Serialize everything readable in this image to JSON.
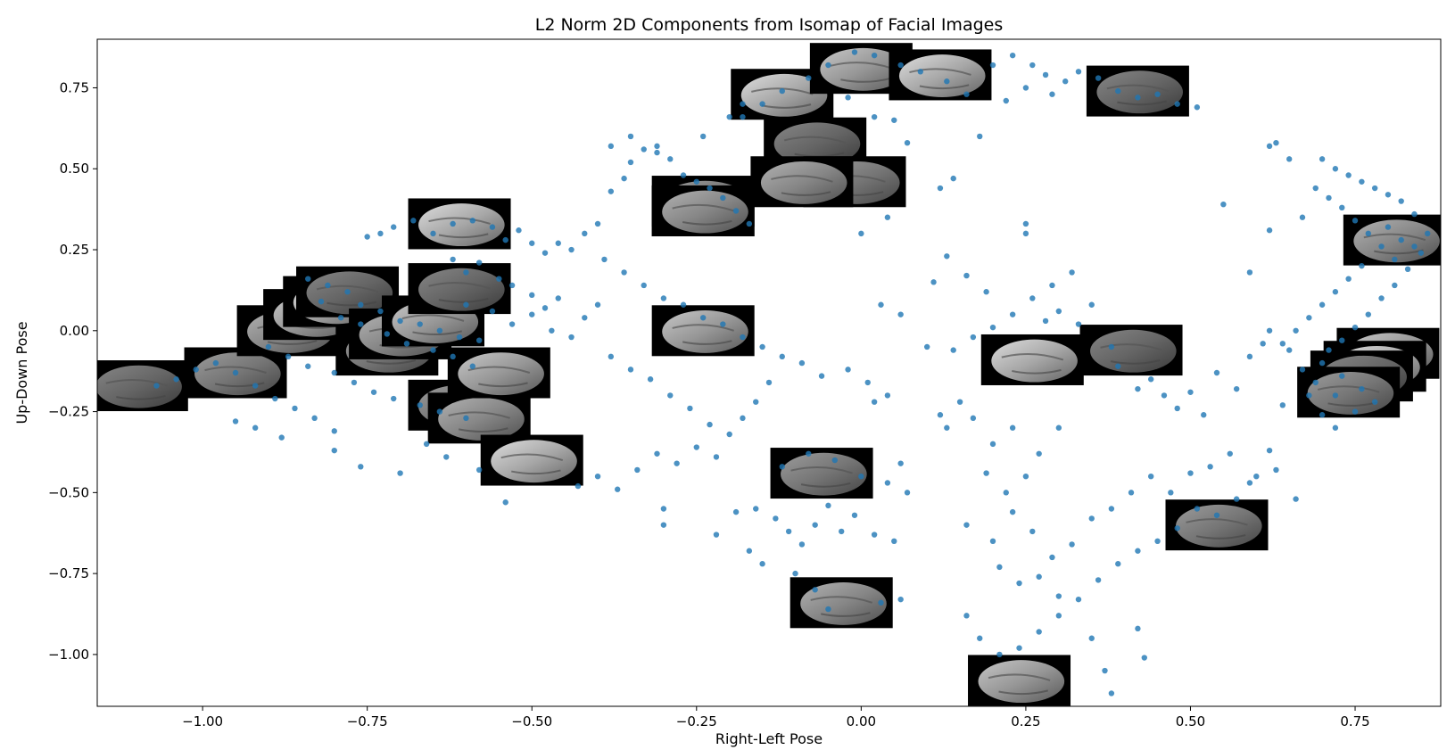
{
  "chart_data": {
    "type": "scatter",
    "title": "L2 Norm 2D Components from Isomap of Facial Images",
    "xlabel": "Right-Left Pose",
    "ylabel": "Up-Down Pose",
    "xlim": [
      -1.16,
      0.88
    ],
    "ylim": [
      -1.16,
      0.9
    ],
    "xticks": [
      -1.0,
      -0.75,
      -0.5,
      -0.25,
      0.0,
      0.25,
      0.5,
      0.75
    ],
    "xtick_labels": [
      "−1.00",
      "−0.75",
      "−0.50",
      "−0.25",
      "0.00",
      "0.25",
      "0.50",
      "0.75"
    ],
    "yticks": [
      0.75,
      0.5,
      0.25,
      0.0,
      -0.25,
      -0.5,
      -0.75,
      -1.0
    ],
    "ytick_labels": [
      "0.75",
      "0.50",
      "0.25",
      "0.00",
      "−0.25",
      "−0.50",
      "−0.75",
      "−1.00"
    ],
    "grid": false,
    "marker_color": "#1f77b4",
    "thumbnail_icon": "face-thumbnail-icon",
    "points": [
      [
        -0.84,
        0.16
      ],
      [
        -0.81,
        0.14
      ],
      [
        -0.78,
        0.12
      ],
      [
        -0.76,
        0.08
      ],
      [
        -0.73,
        0.06
      ],
      [
        -0.7,
        0.03
      ],
      [
        -0.67,
        0.02
      ],
      [
        -0.64,
        0.0
      ],
      [
        -0.61,
        -0.02
      ],
      [
        -0.58,
        -0.03
      ],
      [
        -0.82,
        0.09
      ],
      [
        -0.79,
        0.04
      ],
      [
        -0.76,
        0.02
      ],
      [
        -0.72,
        -0.01
      ],
      [
        -0.69,
        -0.04
      ],
      [
        -0.65,
        -0.06
      ],
      [
        -0.62,
        -0.08
      ],
      [
        -0.59,
        -0.11
      ],
      [
        -0.9,
        -0.05
      ],
      [
        -0.87,
        -0.08
      ],
      [
        -0.84,
        -0.11
      ],
      [
        -0.8,
        -0.13
      ],
      [
        -0.77,
        -0.16
      ],
      [
        -0.74,
        -0.19
      ],
      [
        -0.71,
        -0.21
      ],
      [
        -0.67,
        -0.23
      ],
      [
        -0.64,
        -0.25
      ],
      [
        -0.6,
        -0.27
      ],
      [
        -1.07,
        -0.17
      ],
      [
        -1.04,
        -0.15
      ],
      [
        -1.01,
        -0.12
      ],
      [
        -0.98,
        -0.1
      ],
      [
        -0.95,
        -0.13
      ],
      [
        -0.92,
        -0.17
      ],
      [
        -0.89,
        -0.21
      ],
      [
        -0.86,
        -0.24
      ],
      [
        -0.83,
        -0.27
      ],
      [
        -0.8,
        -0.31
      ],
      [
        -0.95,
        -0.28
      ],
      [
        -0.92,
        -0.3
      ],
      [
        -0.88,
        -0.33
      ],
      [
        -0.8,
        -0.37
      ],
      [
        -0.76,
        -0.42
      ],
      [
        -0.7,
        -0.44
      ],
      [
        -0.66,
        -0.35
      ],
      [
        -0.63,
        -0.39
      ],
      [
        -0.58,
        -0.43
      ],
      [
        -0.54,
        -0.53
      ],
      [
        -0.75,
        0.29
      ],
      [
        -0.73,
        0.3
      ],
      [
        -0.71,
        0.32
      ],
      [
        -0.68,
        0.34
      ],
      [
        -0.65,
        0.3
      ],
      [
        -0.62,
        0.33
      ],
      [
        -0.59,
        0.34
      ],
      [
        -0.56,
        0.32
      ],
      [
        -0.54,
        0.28
      ],
      [
        -0.52,
        0.31
      ],
      [
        -0.5,
        0.27
      ],
      [
        -0.48,
        0.24
      ],
      [
        -0.46,
        0.27
      ],
      [
        -0.44,
        0.25
      ],
      [
        -0.42,
        0.3
      ],
      [
        -0.4,
        0.33
      ],
      [
        -0.62,
        0.22
      ],
      [
        -0.6,
        0.18
      ],
      [
        -0.58,
        0.21
      ],
      [
        -0.55,
        0.16
      ],
      [
        -0.53,
        0.14
      ],
      [
        -0.5,
        0.11
      ],
      [
        -0.48,
        0.07
      ],
      [
        -0.46,
        0.1
      ],
      [
        -0.6,
        0.08
      ],
      [
        -0.56,
        0.06
      ],
      [
        -0.53,
        0.02
      ],
      [
        -0.5,
        0.05
      ],
      [
        -0.47,
        0.0
      ],
      [
        -0.44,
        -0.02
      ],
      [
        -0.42,
        0.04
      ],
      [
        -0.4,
        0.08
      ],
      [
        -0.38,
        0.43
      ],
      [
        -0.36,
        0.47
      ],
      [
        -0.35,
        0.52
      ],
      [
        -0.33,
        0.56
      ],
      [
        -0.31,
        0.57
      ],
      [
        -0.29,
        0.53
      ],
      [
        -0.27,
        0.48
      ],
      [
        -0.25,
        0.46
      ],
      [
        -0.23,
        0.44
      ],
      [
        -0.21,
        0.41
      ],
      [
        -0.19,
        0.37
      ],
      [
        -0.17,
        0.33
      ],
      [
        -0.38,
        0.57
      ],
      [
        -0.35,
        0.6
      ],
      [
        -0.31,
        0.55
      ],
      [
        -0.24,
        0.6
      ],
      [
        -0.2,
        0.66
      ],
      [
        -0.18,
        0.7
      ],
      [
        -0.39,
        0.22
      ],
      [
        -0.36,
        0.18
      ],
      [
        -0.33,
        0.14
      ],
      [
        -0.3,
        0.1
      ],
      [
        -0.27,
        0.08
      ],
      [
        -0.24,
        0.04
      ],
      [
        -0.21,
        0.02
      ],
      [
        -0.18,
        -0.02
      ],
      [
        -0.15,
        -0.05
      ],
      [
        -0.12,
        -0.08
      ],
      [
        -0.09,
        -0.1
      ],
      [
        -0.06,
        -0.14
      ],
      [
        -0.38,
        -0.08
      ],
      [
        -0.35,
        -0.12
      ],
      [
        -0.32,
        -0.15
      ],
      [
        -0.29,
        -0.2
      ],
      [
        -0.26,
        -0.24
      ],
      [
        -0.23,
        -0.29
      ],
      [
        -0.2,
        -0.32
      ],
      [
        -0.18,
        -0.27
      ],
      [
        -0.16,
        -0.22
      ],
      [
        -0.14,
        -0.16
      ],
      [
        -0.43,
        -0.48
      ],
      [
        -0.4,
        -0.45
      ],
      [
        -0.37,
        -0.49
      ],
      [
        -0.34,
        -0.43
      ],
      [
        -0.31,
        -0.38
      ],
      [
        -0.28,
        -0.41
      ],
      [
        -0.25,
        -0.36
      ],
      [
        -0.22,
        -0.39
      ],
      [
        -0.3,
        -0.55
      ],
      [
        -0.3,
        -0.6
      ],
      [
        -0.22,
        -0.63
      ],
      [
        -0.19,
        -0.56
      ],
      [
        -0.17,
        -0.68
      ],
      [
        -0.15,
        -0.72
      ],
      [
        -0.13,
        -0.58
      ],
      [
        -0.11,
        -0.62
      ],
      [
        -0.09,
        -0.66
      ],
      [
        -0.07,
        -0.6
      ],
      [
        -0.05,
        -0.54
      ],
      [
        -0.03,
        -0.62
      ],
      [
        -0.01,
        -0.57
      ],
      [
        0.02,
        -0.63
      ],
      [
        0.05,
        -0.65
      ],
      [
        -0.16,
        -0.55
      ],
      [
        -0.12,
        -0.42
      ],
      [
        -0.08,
        -0.38
      ],
      [
        -0.04,
        -0.4
      ],
      [
        0.0,
        -0.45
      ],
      [
        0.04,
        -0.47
      ],
      [
        0.07,
        -0.5
      ],
      [
        0.06,
        -0.41
      ],
      [
        -0.1,
        -0.75
      ],
      [
        -0.07,
        -0.8
      ],
      [
        -0.05,
        -0.86
      ],
      [
        0.03,
        -0.84
      ],
      [
        0.06,
        -0.83
      ],
      [
        -0.02,
        -0.12
      ],
      [
        0.01,
        -0.16
      ],
      [
        0.04,
        -0.2
      ],
      [
        0.02,
        -0.22
      ],
      [
        0.03,
        0.08
      ],
      [
        0.06,
        0.05
      ],
      [
        0.0,
        0.3
      ],
      [
        0.04,
        0.35
      ],
      [
        0.12,
        0.44
      ],
      [
        0.1,
        -0.05
      ],
      [
        0.12,
        -0.26
      ],
      [
        0.13,
        -0.3
      ],
      [
        0.15,
        -0.22
      ],
      [
        0.17,
        -0.27
      ],
      [
        0.2,
        -0.35
      ],
      [
        0.23,
        -0.3
      ],
      [
        0.27,
        -0.38
      ],
      [
        0.3,
        -0.3
      ],
      [
        0.14,
        -0.06
      ],
      [
        0.17,
        -0.02
      ],
      [
        0.2,
        0.01
      ],
      [
        0.23,
        0.05
      ],
      [
        0.26,
        0.1
      ],
      [
        0.29,
        0.14
      ],
      [
        0.32,
        0.18
      ],
      [
        0.25,
        0.33
      ],
      [
        0.25,
        0.3
      ],
      [
        0.13,
        0.23
      ],
      [
        0.11,
        0.15
      ],
      [
        0.16,
        0.17
      ],
      [
        0.19,
        0.12
      ],
      [
        0.28,
        0.03
      ],
      [
        0.3,
        0.06
      ],
      [
        0.33,
        0.02
      ],
      [
        0.35,
        0.08
      ],
      [
        0.38,
        -0.05
      ],
      [
        0.39,
        -0.11
      ],
      [
        0.42,
        -0.18
      ],
      [
        0.44,
        -0.15
      ],
      [
        0.46,
        -0.2
      ],
      [
        0.48,
        -0.24
      ],
      [
        0.5,
        -0.19
      ],
      [
        0.52,
        -0.26
      ],
      [
        0.54,
        -0.13
      ],
      [
        0.57,
        -0.18
      ],
      [
        0.59,
        -0.08
      ],
      [
        0.61,
        -0.04
      ],
      [
        0.62,
        0.0
      ],
      [
        0.65,
        -0.06
      ],
      [
        0.67,
        -0.12
      ],
      [
        0.68,
        -0.2
      ],
      [
        0.7,
        -0.26
      ],
      [
        0.72,
        -0.3
      ],
      [
        0.64,
        -0.23
      ],
      [
        0.62,
        -0.37
      ],
      [
        0.6,
        -0.45
      ],
      [
        0.57,
        -0.52
      ],
      [
        0.54,
        -0.57
      ],
      [
        0.51,
        -0.55
      ],
      [
        0.48,
        -0.61
      ],
      [
        0.45,
        -0.65
      ],
      [
        0.42,
        -0.68
      ],
      [
        0.39,
        -0.72
      ],
      [
        0.36,
        -0.77
      ],
      [
        0.33,
        -0.83
      ],
      [
        0.3,
        -0.88
      ],
      [
        0.27,
        -0.93
      ],
      [
        0.24,
        -0.98
      ],
      [
        0.21,
        -1.0
      ],
      [
        0.18,
        -0.95
      ],
      [
        0.16,
        -0.88
      ],
      [
        0.35,
        -0.95
      ],
      [
        0.37,
        -1.05
      ],
      [
        0.38,
        -1.12
      ],
      [
        0.42,
        -0.92
      ],
      [
        0.43,
        -1.01
      ],
      [
        0.16,
        -0.6
      ],
      [
        0.2,
        -0.65
      ],
      [
        0.23,
        -0.56
      ],
      [
        0.26,
        -0.62
      ],
      [
        0.29,
        -0.7
      ],
      [
        0.32,
        -0.66
      ],
      [
        0.35,
        -0.58
      ],
      [
        0.38,
        -0.55
      ],
      [
        0.41,
        -0.5
      ],
      [
        0.44,
        -0.45
      ],
      [
        0.47,
        -0.5
      ],
      [
        0.5,
        -0.44
      ],
      [
        0.53,
        -0.42
      ],
      [
        0.56,
        -0.38
      ],
      [
        0.59,
        -0.47
      ],
      [
        0.63,
        -0.43
      ],
      [
        0.66,
        -0.52
      ],
      [
        0.22,
        -0.5
      ],
      [
        0.25,
        -0.45
      ],
      [
        0.19,
        -0.44
      ],
      [
        0.21,
        -0.73
      ],
      [
        0.24,
        -0.78
      ],
      [
        0.27,
        -0.76
      ],
      [
        0.3,
        -0.82
      ],
      [
        0.14,
        0.47
      ],
      [
        0.18,
        0.6
      ],
      [
        0.2,
        0.82
      ],
      [
        0.23,
        0.85
      ],
      [
        0.26,
        0.82
      ],
      [
        0.28,
        0.79
      ],
      [
        0.31,
        0.77
      ],
      [
        0.33,
        0.8
      ],
      [
        0.36,
        0.78
      ],
      [
        0.39,
        0.74
      ],
      [
        0.42,
        0.72
      ],
      [
        0.45,
        0.73
      ],
      [
        0.48,
        0.7
      ],
      [
        0.51,
        0.69
      ],
      [
        0.29,
        0.73
      ],
      [
        0.25,
        0.75
      ],
      [
        0.22,
        0.71
      ],
      [
        0.16,
        0.73
      ],
      [
        0.13,
        0.77
      ],
      [
        0.09,
        0.8
      ],
      [
        0.06,
        0.82
      ],
      [
        0.02,
        0.85
      ],
      [
        -0.01,
        0.86
      ],
      [
        -0.05,
        0.82
      ],
      [
        -0.08,
        0.78
      ],
      [
        -0.12,
        0.74
      ],
      [
        -0.15,
        0.7
      ],
      [
        -0.18,
        0.66
      ],
      [
        -0.02,
        0.72
      ],
      [
        0.02,
        0.66
      ],
      [
        0.05,
        0.65
      ],
      [
        0.07,
        0.58
      ],
      [
        0.63,
        0.58
      ],
      [
        0.62,
        0.57
      ],
      [
        0.65,
        0.53
      ],
      [
        0.67,
        0.35
      ],
      [
        0.62,
        0.31
      ],
      [
        0.59,
        0.18
      ],
      [
        0.55,
        0.39
      ],
      [
        0.7,
        0.53
      ],
      [
        0.72,
        0.5
      ],
      [
        0.74,
        0.48
      ],
      [
        0.76,
        0.46
      ],
      [
        0.78,
        0.44
      ],
      [
        0.8,
        0.42
      ],
      [
        0.82,
        0.4
      ],
      [
        0.84,
        0.36
      ],
      [
        0.86,
        0.3
      ],
      [
        0.85,
        0.24
      ],
      [
        0.83,
        0.19
      ],
      [
        0.81,
        0.14
      ],
      [
        0.79,
        0.1
      ],
      [
        0.77,
        0.05
      ],
      [
        0.75,
        0.01
      ],
      [
        0.73,
        -0.03
      ],
      [
        0.71,
        -0.06
      ],
      [
        0.69,
        0.44
      ],
      [
        0.71,
        0.41
      ],
      [
        0.73,
        0.38
      ],
      [
        0.75,
        0.34
      ],
      [
        0.77,
        0.3
      ],
      [
        0.79,
        0.26
      ],
      [
        0.81,
        0.22
      ],
      [
        0.76,
        0.2
      ],
      [
        0.74,
        0.16
      ],
      [
        0.72,
        0.12
      ],
      [
        0.7,
        0.08
      ],
      [
        0.68,
        0.04
      ],
      [
        0.66,
        0.0
      ],
      [
        0.64,
        -0.04
      ],
      [
        0.7,
        -0.1
      ],
      [
        0.73,
        -0.14
      ],
      [
        0.76,
        -0.18
      ],
      [
        0.78,
        -0.22
      ],
      [
        0.75,
        -0.25
      ],
      [
        0.72,
        -0.2
      ],
      [
        0.69,
        -0.16
      ],
      [
        0.8,
        0.32
      ],
      [
        0.82,
        0.28
      ],
      [
        0.84,
        0.26
      ]
    ],
    "thumbnails": [
      [
        -1.1,
        -0.17
      ],
      [
        -0.95,
        -0.13
      ],
      [
        -0.87,
        0.0
      ],
      [
        -0.83,
        0.05
      ],
      [
        -0.8,
        0.09
      ],
      [
        -0.78,
        0.12
      ],
      [
        -0.72,
        -0.06
      ],
      [
        -0.7,
        -0.01
      ],
      [
        -0.65,
        0.03
      ],
      [
        -0.61,
        0.33
      ],
      [
        -0.61,
        0.13
      ],
      [
        -0.61,
        -0.23
      ],
      [
        -0.58,
        -0.27
      ],
      [
        -0.55,
        -0.13
      ],
      [
        -0.5,
        -0.4
      ],
      [
        -0.24,
        0.37
      ],
      [
        -0.24,
        0.4
      ],
      [
        -0.24,
        0.37
      ],
      [
        -0.24,
        0.0
      ],
      [
        -0.12,
        0.73
      ],
      [
        -0.07,
        0.58
      ],
      [
        -0.01,
        0.46
      ],
      [
        -0.09,
        0.46
      ],
      [
        0.0,
        0.81
      ],
      [
        0.12,
        0.79
      ],
      [
        0.42,
        0.74
      ],
      [
        -0.06,
        -0.44
      ],
      [
        -0.03,
        -0.84
      ],
      [
        0.24,
        -1.08
      ],
      [
        0.26,
        -0.09
      ],
      [
        0.41,
        -0.06
      ],
      [
        0.54,
        -0.6
      ],
      [
        0.81,
        0.28
      ],
      [
        0.8,
        -0.07
      ],
      [
        0.78,
        -0.11
      ],
      [
        0.76,
        -0.14
      ],
      [
        0.74,
        -0.19
      ]
    ]
  }
}
